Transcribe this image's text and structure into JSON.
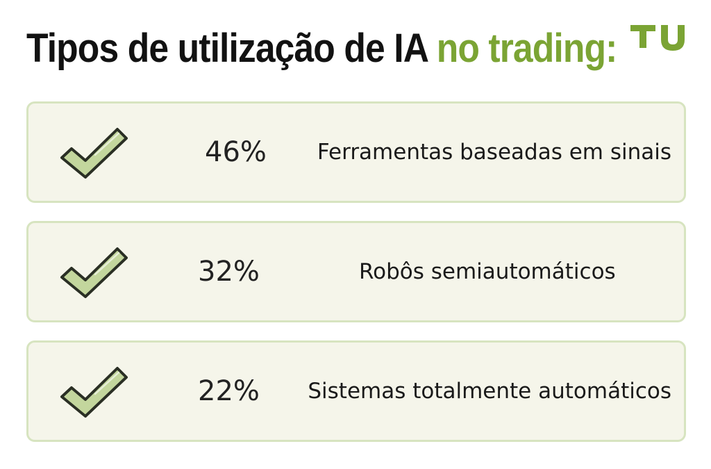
{
  "header": {
    "title_main": "Tipos de utilização de IA",
    "title_accent": "no trading:",
    "logo_text": "TU"
  },
  "colors": {
    "accent": "#7ba434",
    "card_background": "#f5f5ea",
    "card_border": "#d7e4c0",
    "check_fill": "#c3d69d",
    "title_text": "#121212"
  },
  "items": [
    {
      "percent": "46%",
      "label": "Ferramentas baseadas em sinais",
      "icon": "checkmark-icon"
    },
    {
      "percent": "32%",
      "label": "Robôs semiautomáticos",
      "icon": "checkmark-icon"
    },
    {
      "percent": "22%",
      "label": "Sistemas totalmente automáticos",
      "icon": "checkmark-icon"
    }
  ]
}
